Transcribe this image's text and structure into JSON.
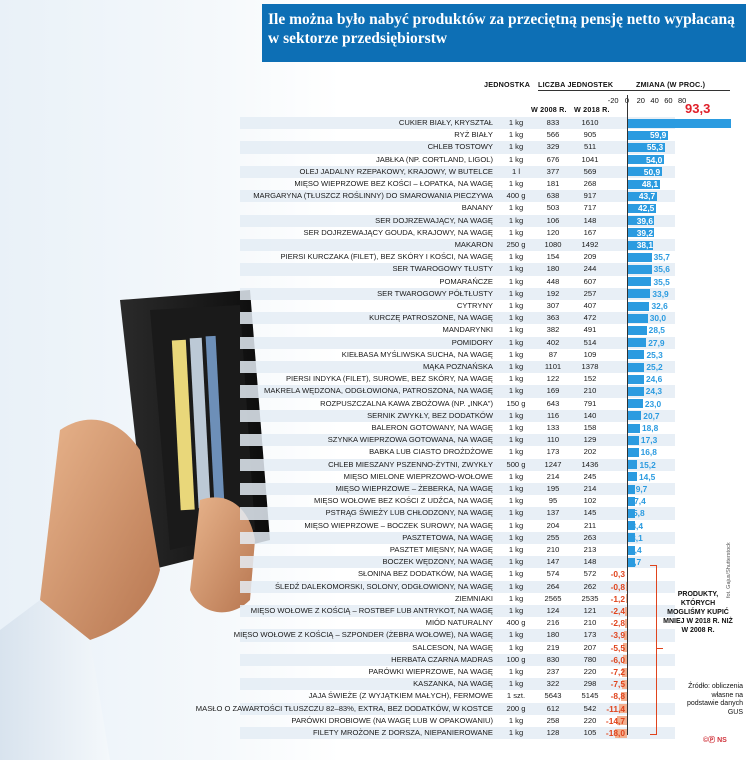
{
  "title": "Ile można było nabyć produktów za przeciętną pensję netto wypłacaną w sektorze przedsiębiorstw",
  "headers": {
    "unit": "JEDNOSTKA",
    "count": "LICZBA JEDNOSTEK",
    "y2008": "W 2008 R.",
    "y2018": "W 2018 R.",
    "change": "ZMIANA (W PROC.)"
  },
  "note": "PRODUKTY, KTÓRYCH MOGLIŚMY KUPIĆ MNIEJ W 2018 R. NIŻ W 2008 R.",
  "source": "Źródło: obliczenia własne na podstawie danych GUS",
  "photo_credit": "fot. Gajus/Shutterstock",
  "logo": "©Ⓟ NS",
  "colors": {
    "positive": "#2b9be0",
    "negative": "#f3b08f",
    "title_bg": "#0d6fb5",
    "negative_text": "#e0441d",
    "top_value": "#e0202a"
  },
  "chart_data": {
    "type": "bar",
    "orientation": "horizontal",
    "xlim": [
      -20,
      93.3
    ],
    "x_ticks": [
      "-20",
      "0",
      "20",
      "40",
      "60",
      "80"
    ],
    "x_tick_values": [
      -20,
      0,
      20,
      40,
      60,
      80
    ],
    "rows": [
      {
        "name": "cukier biały, kryształ",
        "unit": "1 kg",
        "y2008": "833",
        "y2018": "1610",
        "change": 93.3,
        "label": "93,3"
      },
      {
        "name": "ryż biały",
        "unit": "1 kg",
        "y2008": "566",
        "y2018": "905",
        "change": 59.9,
        "label": "59,9"
      },
      {
        "name": "chleb tostowy",
        "unit": "1 kg",
        "y2008": "329",
        "y2018": "511",
        "change": 55.3,
        "label": "55,3"
      },
      {
        "name": "jabłka (np. Cortland, Ligol)",
        "unit": "1 kg",
        "y2008": "676",
        "y2018": "1041",
        "change": 54.0,
        "label": "54,0"
      },
      {
        "name": "olej jadalny rzepakowy, krajowy, w butelce",
        "unit": "1 l",
        "y2008": "377",
        "y2018": "569",
        "change": 50.9,
        "label": "50,9"
      },
      {
        "name": "mięso wieprzowe bez kości – łopatka, na wagę",
        "unit": "1 kg",
        "y2008": "181",
        "y2018": "268",
        "change": 48.1,
        "label": "48,1"
      },
      {
        "name": "margaryna (tłuszcz roślinny) do smarowania pieczywa",
        "unit": "400 g",
        "y2008": "638",
        "y2018": "917",
        "change": 43.7,
        "label": "43,7"
      },
      {
        "name": "banany",
        "unit": "1 kg",
        "y2008": "503",
        "y2018": "717",
        "change": 42.5,
        "label": "42,5"
      },
      {
        "name": "ser dojrzewający, na wagę",
        "unit": "1 kg",
        "y2008": "106",
        "y2018": "148",
        "change": 39.6,
        "label": "39,6"
      },
      {
        "name": "ser dojrzewający Gouda, krajowy, na wagę",
        "unit": "1 kg",
        "y2008": "120",
        "y2018": "167",
        "change": 39.2,
        "label": "39,2"
      },
      {
        "name": "makaron",
        "unit": "250 g",
        "y2008": "1080",
        "y2018": "1492",
        "change": 38.1,
        "label": "38,1"
      },
      {
        "name": "piersi kurczaka (filet), bez skóry i kości, na wagę",
        "unit": "1 kg",
        "y2008": "154",
        "y2018": "209",
        "change": 35.7,
        "label": "35,7"
      },
      {
        "name": "ser twarogowy tłusty",
        "unit": "1 kg",
        "y2008": "180",
        "y2018": "244",
        "change": 35.6,
        "label": "35,6"
      },
      {
        "name": "pomarańcze",
        "unit": "1 kg",
        "y2008": "448",
        "y2018": "607",
        "change": 35.5,
        "label": "35,5"
      },
      {
        "name": "ser twarogowy półtłusty",
        "unit": "1 kg",
        "y2008": "192",
        "y2018": "257",
        "change": 33.9,
        "label": "33,9"
      },
      {
        "name": "cytryny",
        "unit": "1 kg",
        "y2008": "307",
        "y2018": "407",
        "change": 32.6,
        "label": "32,6"
      },
      {
        "name": "kurczę patroszone, na wagę",
        "unit": "1 kg",
        "y2008": "363",
        "y2018": "472",
        "change": 30.0,
        "label": "30,0"
      },
      {
        "name": "mandarynki",
        "unit": "1 kg",
        "y2008": "382",
        "y2018": "491",
        "change": 28.5,
        "label": "28,5"
      },
      {
        "name": "pomidory",
        "unit": "1 kg",
        "y2008": "402",
        "y2018": "514",
        "change": 27.9,
        "label": "27,9"
      },
      {
        "name": "kiełbasa Myśliwska sucha, na wagę",
        "unit": "1 kg",
        "y2008": "87",
        "y2018": "109",
        "change": 25.3,
        "label": "25,3"
      },
      {
        "name": "mąka Poznańska",
        "unit": "1 kg",
        "y2008": "1101",
        "y2018": "1378",
        "change": 25.2,
        "label": "25,2"
      },
      {
        "name": "piersi indyka (filet), surowe, bez skóry, na wagę",
        "unit": "1 kg",
        "y2008": "122",
        "y2018": "152",
        "change": 24.6,
        "label": "24,6"
      },
      {
        "name": "makrela wędzona, odgłowiona, patroszona, na wagę",
        "unit": "1 kg",
        "y2008": "169",
        "y2018": "210",
        "change": 24.3,
        "label": "24,3"
      },
      {
        "name": "rozpuszczalna kawa zbożowa (np. „Inka”)",
        "unit": "150 g",
        "y2008": "643",
        "y2018": "791",
        "change": 23.0,
        "label": "23,0"
      },
      {
        "name": "sernik zwykły, bez dodatków",
        "unit": "1 kg",
        "y2008": "116",
        "y2018": "140",
        "change": 20.7,
        "label": "20,7"
      },
      {
        "name": "baleron gotowany, na wagę",
        "unit": "1 kg",
        "y2008": "133",
        "y2018": "158",
        "change": 18.8,
        "label": "18,8"
      },
      {
        "name": "szynka wieprzowa gotowana, na wagę",
        "unit": "1 kg",
        "y2008": "110",
        "y2018": "129",
        "change": 17.3,
        "label": "17,3"
      },
      {
        "name": "babka lub ciasto drożdżowe",
        "unit": "1 kg",
        "y2008": "173",
        "y2018": "202",
        "change": 16.8,
        "label": "16,8"
      },
      {
        "name": "chleb mieszany pszenno-żytni, zwykły",
        "unit": "500 g",
        "y2008": "1247",
        "y2018": "1436",
        "change": 15.2,
        "label": "15,2"
      },
      {
        "name": "mięso mielone wieprzowo-wołowe",
        "unit": "1 kg",
        "y2008": "214",
        "y2018": "245",
        "change": 14.5,
        "label": "14,5"
      },
      {
        "name": "mięso wieprzowe – żeberka, na wagę",
        "unit": "1 kg",
        "y2008": "195",
        "y2018": "214",
        "change": 9.7,
        "label": "9,7"
      },
      {
        "name": "mięso wołowe bez kości z udźca, na wagę",
        "unit": "1 kg",
        "y2008": "95",
        "y2018": "102",
        "change": 7.4,
        "label": "7,4"
      },
      {
        "name": "pstrąg świeży lub chłodzony, na wagę",
        "unit": "1 kg",
        "y2008": "137",
        "y2018": "145",
        "change": 5.8,
        "label": "5,8"
      },
      {
        "name": "mięso wieprzowe – boczek surowy, na wagę",
        "unit": "1 kg",
        "y2008": "204",
        "y2018": "211",
        "change": 3.4,
        "label": "3,4"
      },
      {
        "name": "pasztetowa, na wagę",
        "unit": "1 kg",
        "y2008": "255",
        "y2018": "263",
        "change": 3.1,
        "label": "3,1"
      },
      {
        "name": "pasztet mięsny, na wagę",
        "unit": "1 kg",
        "y2008": "210",
        "y2018": "213",
        "change": 1.4,
        "label": "1,4"
      },
      {
        "name": "boczek wędzony, na wagę",
        "unit": "1 kg",
        "y2008": "147",
        "y2018": "148",
        "change": 0.7,
        "label": "0,7"
      },
      {
        "name": "słonina bez dodatków, na wagę",
        "unit": "1 kg",
        "y2008": "574",
        "y2018": "572",
        "change": -0.3,
        "label": "-0,3"
      },
      {
        "name": "śledź dalekomorski, solony, odgłowiony, na wagę",
        "unit": "1 kg",
        "y2008": "264",
        "y2018": "262",
        "change": -0.8,
        "label": "-0,8"
      },
      {
        "name": "ziemniaki",
        "unit": "1 kg",
        "y2008": "2565",
        "y2018": "2535",
        "change": -1.2,
        "label": "-1,2"
      },
      {
        "name": "mięso wołowe z kością – rostbef lub antrykot, na wagę",
        "unit": "1 kg",
        "y2008": "124",
        "y2018": "121",
        "change": -2.4,
        "label": "-2,4"
      },
      {
        "name": "miód naturalny",
        "unit": "400 g",
        "y2008": "216",
        "y2018": "210",
        "change": -2.8,
        "label": "-2,8"
      },
      {
        "name": "mięso wołowe z kością – szponder (żebra wołowe), na wagę",
        "unit": "1 kg",
        "y2008": "180",
        "y2018": "173",
        "change": -3.9,
        "label": "-3,9"
      },
      {
        "name": "salceson, na wagę",
        "unit": "1 kg",
        "y2008": "219",
        "y2018": "207",
        "change": -5.5,
        "label": "-5,5"
      },
      {
        "name": "herbata czarna Madras",
        "unit": "100 g",
        "y2008": "830",
        "y2018": "780",
        "change": -6.0,
        "label": "-6,0"
      },
      {
        "name": "parówki wieprzowe, na wagę",
        "unit": "1 kg",
        "y2008": "237",
        "y2018": "220",
        "change": -7.2,
        "label": "-7,2"
      },
      {
        "name": "kaszanka, na wagę",
        "unit": "1 kg",
        "y2008": "322",
        "y2018": "298",
        "change": -7.5,
        "label": "-7,5"
      },
      {
        "name": "jaja świeże (z wyjątkiem małych), fermowe",
        "unit": "1 szt.",
        "y2008": "5643",
        "y2018": "5145",
        "change": -8.8,
        "label": "-8,8"
      },
      {
        "name": "masło o zawartości tłuszczu 82–83%, Extra, bez dodatków, w kostce",
        "unit": "200 g",
        "y2008": "612",
        "y2018": "542",
        "change": -11.4,
        "label": "-11,4"
      },
      {
        "name": "parówki drobiowe (na wagę lub w opakowaniu)",
        "unit": "1 kg",
        "y2008": "258",
        "y2018": "220",
        "change": -14.7,
        "label": "-14,7"
      },
      {
        "name": "filety mrożone z dorsza, niepanierowane",
        "unit": "1 kg",
        "y2008": "128",
        "y2018": "105",
        "change": -18.0,
        "label": "-18,0"
      }
    ]
  }
}
